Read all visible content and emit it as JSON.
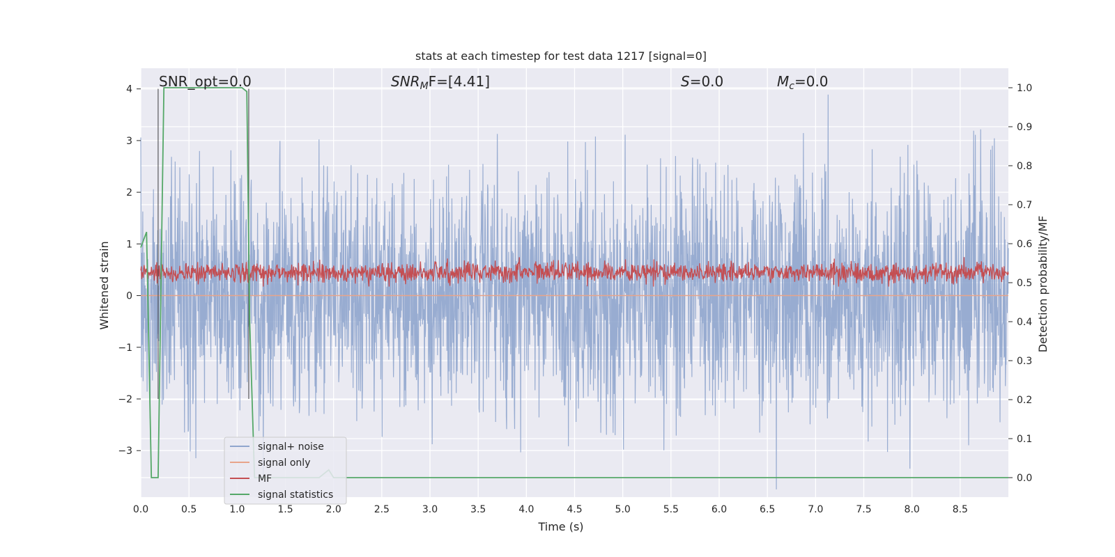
{
  "chart_data": {
    "type": "line",
    "title": "stats at each timestep for test data 1217 [signal=0]",
    "xlabel": "Time (s)",
    "ylabel_left": "Whitened strain",
    "ylabel_right": "Detection probability/MF",
    "xlim": [
      0,
      9.0
    ],
    "ylim_left": [
      -3.9,
      4.4
    ],
    "ylim_right": [
      -0.05,
      1.05
    ],
    "x_ticks": [
      "0.0",
      "0.5",
      "1.0",
      "1.5",
      "2.0",
      "2.5",
      "3.0",
      "3.5",
      "4.0",
      "4.5",
      "5.0",
      "5.5",
      "6.0",
      "6.5",
      "7.0",
      "7.5",
      "8.0",
      "8.5"
    ],
    "y_ticks_left": [
      "−3",
      "−2",
      "−1",
      "0",
      "1",
      "2",
      "3",
      "4"
    ],
    "y_ticks_right": [
      "0.0",
      "0.1",
      "0.2",
      "0.3",
      "0.4",
      "0.5",
      "0.6",
      "0.7",
      "0.8",
      "0.9",
      "1.0"
    ],
    "grid": true,
    "legend_position": "lower-left",
    "annotations": {
      "snr_opt": "SNR_opt=0.0",
      "snr_mf_italic": "SNR",
      "snr_mf_sub": "M",
      "snr_mf_rest": "F=[4.41]",
      "s_italic": "S",
      "s_rest": "=0.0",
      "mc_italic": "M",
      "mc_sub": "c",
      "mc_rest": "=0.0"
    },
    "vertical_markers_x": [
      0.18,
      1.12
    ],
    "series": [
      {
        "name": "signal+ noise",
        "color": "#8fa5cd",
        "axis": "left",
        "description_values": "gaussian noise, |amplitude| mostly within ±2.5, peaks ±4"
      },
      {
        "name": "signal only",
        "color": "#e8a48a",
        "axis": "left",
        "values_constant": 0.0
      },
      {
        "name": "MF",
        "color": "#c44e52",
        "axis": "right",
        "range": [
          0.49,
          0.57
        ]
      },
      {
        "name": "signal statistics",
        "color": "#55a868",
        "axis": "right",
        "x": [
          0.0,
          0.06,
          0.11,
          0.18,
          0.24,
          0.3,
          1.05,
          1.1,
          1.13,
          1.18,
          1.5,
          1.85,
          1.95,
          2.0,
          2.05,
          9.0
        ],
        "y": [
          0.59,
          0.63,
          0.0,
          0.0,
          1.0,
          1.0,
          1.0,
          0.99,
          0.4,
          0.0,
          0.0,
          0.0,
          0.02,
          0.0,
          0.0,
          0.0
        ]
      }
    ]
  }
}
